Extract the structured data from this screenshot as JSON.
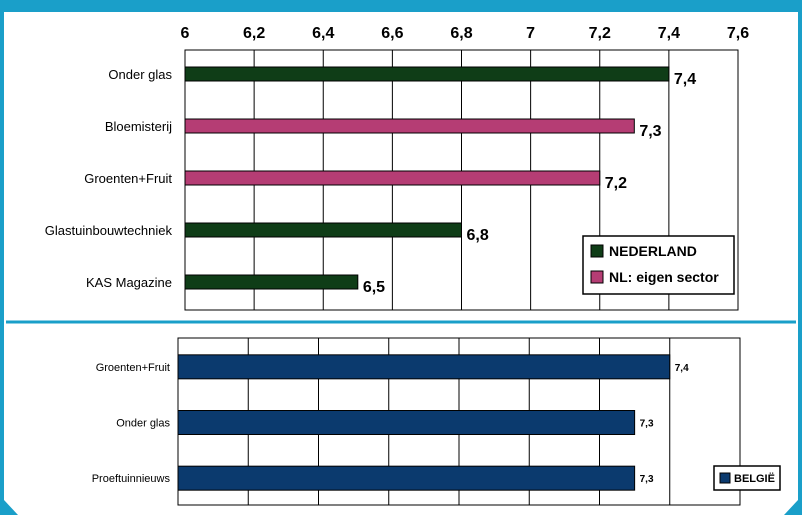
{
  "colors": {
    "frame": "#1a9fc9",
    "nederland": "#0f3d17",
    "eigen_sector": "#b53d74",
    "belgie": "#0b3a6e"
  },
  "chart_data": [
    {
      "type": "bar",
      "orientation": "horizontal",
      "categories": [
        "Onder glas",
        "Bloemisterij",
        "Groenten+Fruit",
        "Glastuinbouwtechniek",
        "KAS Magazine"
      ],
      "values": [
        7.4,
        7.3,
        7.2,
        6.8,
        6.5
      ],
      "value_labels": [
        "7,4",
        "7,3",
        "7,2",
        "6,8",
        "6,5"
      ],
      "bar_series": [
        "NEDERLAND",
        "NL: eigen sector",
        "NL: eigen sector",
        "NEDERLAND",
        "NEDERLAND"
      ],
      "series": [
        {
          "name": "NEDERLAND",
          "color": "#0f3d17"
        },
        {
          "name": "NL: eigen sector",
          "color": "#b53d74"
        }
      ],
      "xlim": [
        6,
        7.6
      ],
      "ticks": [
        6,
        6.2,
        6.4,
        6.6,
        6.8,
        7,
        7.2,
        7.4,
        7.6
      ],
      "tick_labels": [
        "6",
        "6,2",
        "6,4",
        "6,6",
        "6,8",
        "7",
        "7,2",
        "7,4",
        "7,6"
      ],
      "axis_position": "top",
      "grid": true,
      "legend": "bottom-right"
    },
    {
      "type": "bar",
      "orientation": "horizontal",
      "categories": [
        "Groenten+Fruit",
        "Onder glas",
        "Proeftuinnieuws"
      ],
      "values": [
        7.4,
        7.3,
        7.3
      ],
      "value_labels": [
        "7,4",
        "7,3",
        "7,3"
      ],
      "bar_series": [
        "BELGIË",
        "BELGIË",
        "BELGIË"
      ],
      "series": [
        {
          "name": "BELGIË",
          "color": "#0b3a6e"
        }
      ],
      "xlim": [
        6,
        7.6
      ],
      "grid": true,
      "legend": "bottom-right"
    }
  ]
}
